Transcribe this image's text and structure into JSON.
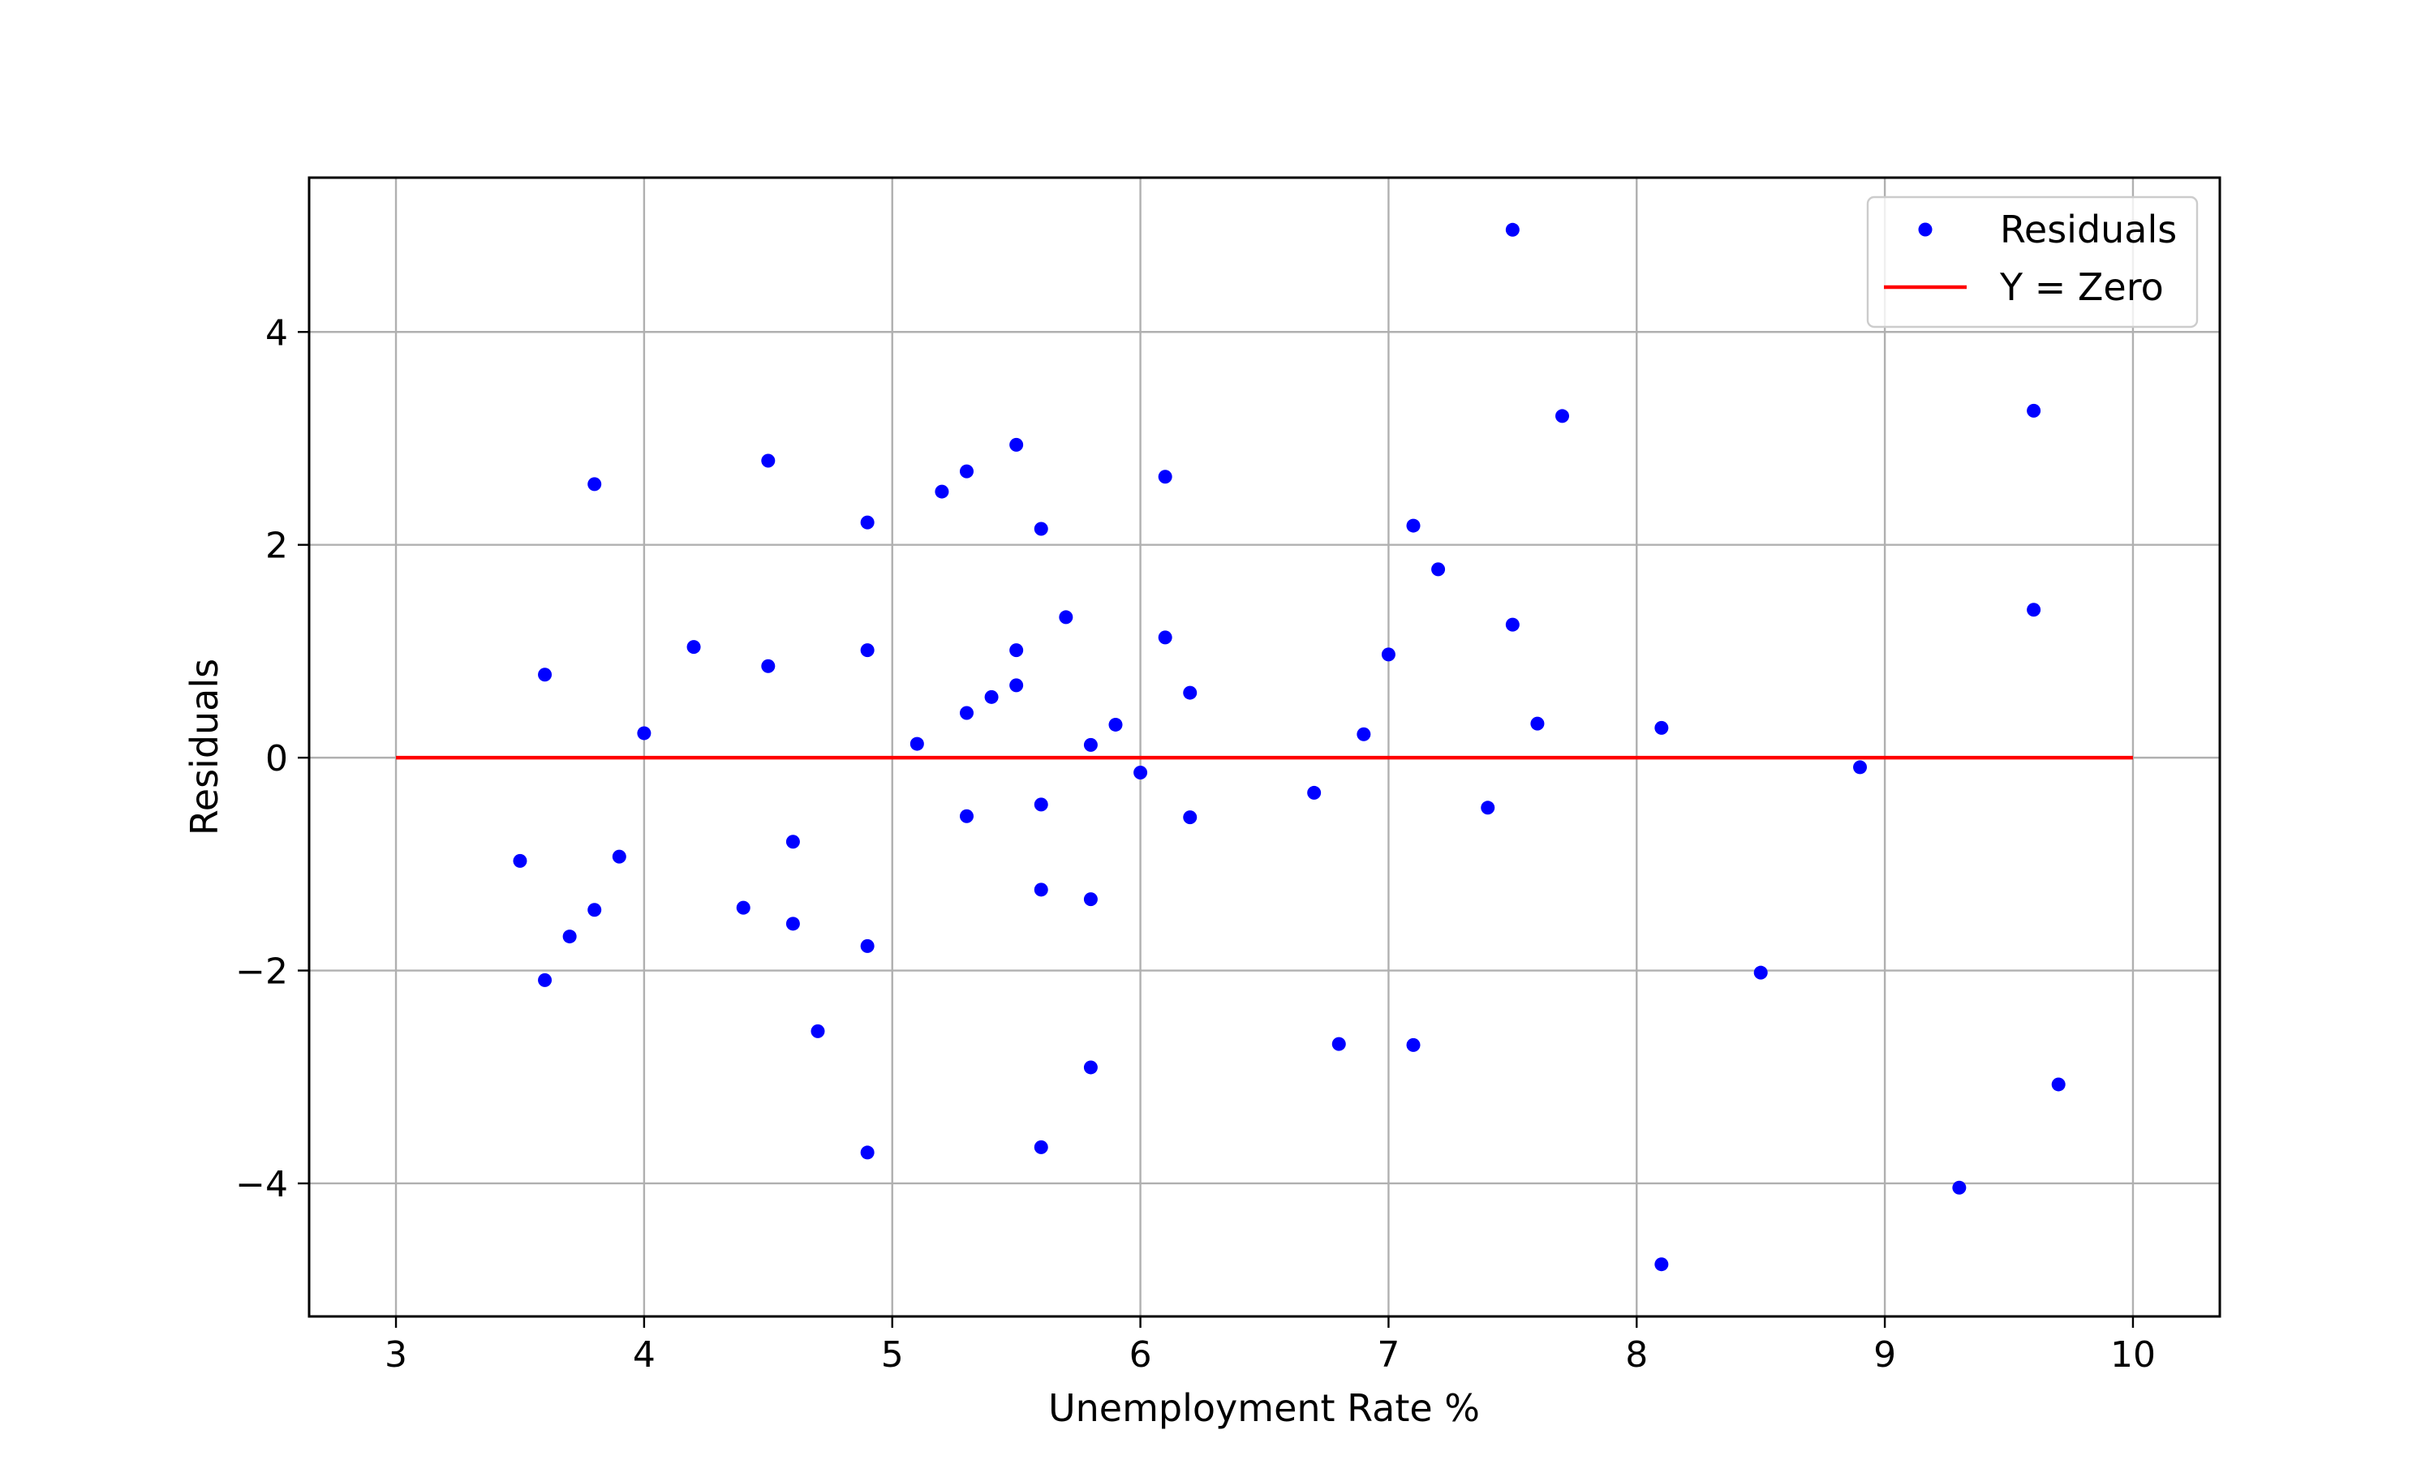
{
  "chart_data": {
    "type": "scatter",
    "title": "",
    "xlabel": "Unemployment Rate %",
    "ylabel": "Residuals",
    "xlim": [
      2.65,
      10.35
    ],
    "ylim": [
      -5.25,
      5.45
    ],
    "x_ticks": [
      3,
      4,
      5,
      6,
      7,
      8,
      9,
      10
    ],
    "y_ticks": [
      -4,
      -2,
      0,
      2,
      4
    ],
    "x_tick_labels": [
      "3",
      "4",
      "5",
      "6",
      "7",
      "8",
      "9",
      "10"
    ],
    "y_tick_labels": [
      "−4",
      "−2",
      "0",
      "2",
      "4"
    ],
    "grid": true,
    "legend_position": "top-right",
    "series": [
      {
        "name": "Residuals",
        "kind": "scatter",
        "color": "#0000ff",
        "points": [
          [
            3.5,
            -0.97
          ],
          [
            3.6,
            0.78
          ],
          [
            3.6,
            -2.09
          ],
          [
            3.7,
            -1.68
          ],
          [
            3.8,
            2.57
          ],
          [
            3.8,
            -1.43
          ],
          [
            3.9,
            -0.93
          ],
          [
            4.0,
            0.23
          ],
          [
            4.2,
            1.04
          ],
          [
            4.4,
            -1.41
          ],
          [
            4.5,
            2.79
          ],
          [
            4.5,
            0.86
          ],
          [
            4.6,
            -0.79
          ],
          [
            4.6,
            -1.56
          ],
          [
            4.7,
            -2.57
          ],
          [
            4.9,
            2.21
          ],
          [
            4.9,
            1.01
          ],
          [
            4.9,
            -1.77
          ],
          [
            4.9,
            -3.71
          ],
          [
            5.1,
            0.13
          ],
          [
            5.2,
            2.5
          ],
          [
            5.3,
            2.69
          ],
          [
            5.3,
            0.42
          ],
          [
            5.3,
            -0.55
          ],
          [
            5.4,
            0.57
          ],
          [
            5.5,
            2.94
          ],
          [
            5.5,
            1.01
          ],
          [
            5.5,
            0.68
          ],
          [
            5.6,
            2.15
          ],
          [
            5.6,
            -0.44
          ],
          [
            5.6,
            -1.24
          ],
          [
            5.6,
            -3.66
          ],
          [
            5.7,
            1.32
          ],
          [
            5.8,
            0.12
          ],
          [
            5.8,
            -1.33
          ],
          [
            5.8,
            -2.91
          ],
          [
            5.9,
            0.31
          ],
          [
            6.0,
            -0.14
          ],
          [
            6.1,
            2.64
          ],
          [
            6.1,
            1.13
          ],
          [
            6.2,
            0.61
          ],
          [
            6.2,
            -0.56
          ],
          [
            6.7,
            -0.33
          ],
          [
            6.8,
            -2.69
          ],
          [
            6.9,
            0.22
          ],
          [
            7.0,
            0.97
          ],
          [
            7.1,
            2.18
          ],
          [
            7.1,
            -2.7
          ],
          [
            7.2,
            1.77
          ],
          [
            7.4,
            -0.47
          ],
          [
            7.5,
            4.96
          ],
          [
            7.5,
            1.25
          ],
          [
            7.6,
            0.32
          ],
          [
            7.7,
            3.21
          ],
          [
            8.1,
            0.28
          ],
          [
            8.1,
            -4.76
          ],
          [
            8.5,
            -2.02
          ],
          [
            8.9,
            -0.09
          ],
          [
            9.3,
            -4.04
          ],
          [
            9.6,
            3.26
          ],
          [
            9.6,
            1.39
          ],
          [
            9.7,
            -3.07
          ]
        ]
      },
      {
        "name": "Y = Zero",
        "kind": "line",
        "color": "#ff0000",
        "points": [
          [
            3,
            0
          ],
          [
            10,
            0
          ]
        ]
      }
    ]
  }
}
